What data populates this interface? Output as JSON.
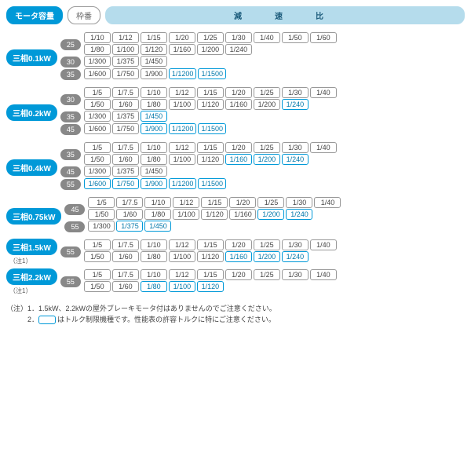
{
  "header": {
    "motor_label": "モータ容量",
    "frame_label": "枠番",
    "ratio_label": "減　速　比"
  },
  "groups": [
    {
      "motor": "三相0.1kW",
      "note": "",
      "branches": [
        {
          "frame": "25",
          "rows": [
            [
              {
                "v": "1/10"
              },
              {
                "v": "1/12"
              },
              {
                "v": "1/15"
              },
              {
                "v": "1/20"
              },
              {
                "v": "1/25"
              },
              {
                "v": "1/30"
              },
              {
                "v": "1/40"
              },
              {
                "v": "1/50"
              },
              {
                "v": "1/60"
              }
            ],
            [
              {
                "v": "1/80"
              },
              {
                "v": "1/100"
              },
              {
                "v": "1/120"
              },
              {
                "v": "1/160"
              },
              {
                "v": "1/200"
              },
              {
                "v": "1/240"
              }
            ]
          ]
        },
        {
          "frame": "30",
          "rows": [
            [
              {
                "v": "1/300"
              },
              {
                "v": "1/375"
              },
              {
                "v": "1/450"
              }
            ]
          ]
        },
        {
          "frame": "35",
          "rows": [
            [
              {
                "v": "1/600"
              },
              {
                "v": "1/750"
              },
              {
                "v": "1/900"
              },
              {
                "v": "1/1200",
                "hl": true
              },
              {
                "v": "1/1500",
                "hl": true
              }
            ]
          ]
        }
      ]
    },
    {
      "motor": "三相0.2kW",
      "note": "",
      "branches": [
        {
          "frame": "30",
          "rows": [
            [
              {
                "v": "1/5"
              },
              {
                "v": "1/7.5"
              },
              {
                "v": "1/10"
              },
              {
                "v": "1/12"
              },
              {
                "v": "1/15"
              },
              {
                "v": "1/20"
              },
              {
                "v": "1/25"
              },
              {
                "v": "1/30"
              },
              {
                "v": "1/40"
              }
            ],
            [
              {
                "v": "1/50"
              },
              {
                "v": "1/60"
              },
              {
                "v": "1/80"
              },
              {
                "v": "1/100"
              },
              {
                "v": "1/120"
              },
              {
                "v": "1/160"
              },
              {
                "v": "1/200"
              },
              {
                "v": "1/240",
                "hl": true
              }
            ]
          ]
        },
        {
          "frame": "35",
          "rows": [
            [
              {
                "v": "1/300"
              },
              {
                "v": "1/375"
              },
              {
                "v": "1/450",
                "hl": true
              }
            ]
          ]
        },
        {
          "frame": "45",
          "rows": [
            [
              {
                "v": "1/600"
              },
              {
                "v": "1/750"
              },
              {
                "v": "1/900",
                "hl": true
              },
              {
                "v": "1/1200",
                "hl": true
              },
              {
                "v": "1/1500",
                "hl": true
              }
            ]
          ]
        }
      ]
    },
    {
      "motor": "三相0.4kW",
      "note": "",
      "branches": [
        {
          "frame": "35",
          "rows": [
            [
              {
                "v": "1/5"
              },
              {
                "v": "1/7.5"
              },
              {
                "v": "1/10"
              },
              {
                "v": "1/12"
              },
              {
                "v": "1/15"
              },
              {
                "v": "1/20"
              },
              {
                "v": "1/25"
              },
              {
                "v": "1/30"
              },
              {
                "v": "1/40"
              }
            ],
            [
              {
                "v": "1/50"
              },
              {
                "v": "1/60"
              },
              {
                "v": "1/80"
              },
              {
                "v": "1/100"
              },
              {
                "v": "1/120"
              },
              {
                "v": "1/160",
                "hl": true
              },
              {
                "v": "1/200",
                "hl": true
              },
              {
                "v": "1/240",
                "hl": true
              }
            ]
          ]
        },
        {
          "frame": "45",
          "rows": [
            [
              {
                "v": "1/300"
              },
              {
                "v": "1/375"
              },
              {
                "v": "1/450"
              }
            ]
          ]
        },
        {
          "frame": "55",
          "rows": [
            [
              {
                "v": "1/600",
                "hl": true
              },
              {
                "v": "1/750",
                "hl": true
              },
              {
                "v": "1/900",
                "hl": true
              },
              {
                "v": "1/1200",
                "hl": true
              },
              {
                "v": "1/1500",
                "hl": true
              }
            ]
          ]
        }
      ]
    },
    {
      "motor": "三相0.75kW",
      "note": "",
      "branches": [
        {
          "frame": "45",
          "rows": [
            [
              {
                "v": "1/5"
              },
              {
                "v": "1/7.5"
              },
              {
                "v": "1/10"
              },
              {
                "v": "1/12"
              },
              {
                "v": "1/15"
              },
              {
                "v": "1/20"
              },
              {
                "v": "1/25"
              },
              {
                "v": "1/30"
              },
              {
                "v": "1/40"
              }
            ],
            [
              {
                "v": "1/50"
              },
              {
                "v": "1/60"
              },
              {
                "v": "1/80"
              },
              {
                "v": "1/100"
              },
              {
                "v": "1/120"
              },
              {
                "v": "1/160"
              },
              {
                "v": "1/200",
                "hl": true
              },
              {
                "v": "1/240",
                "hl": true
              }
            ]
          ]
        },
        {
          "frame": "55",
          "rows": [
            [
              {
                "v": "1/300"
              },
              {
                "v": "1/375",
                "hl": true
              },
              {
                "v": "1/450",
                "hl": true
              }
            ]
          ]
        }
      ]
    },
    {
      "motor": "三相1.5kW",
      "note": "（注1）",
      "branches": [
        {
          "frame": "55",
          "rows": [
            [
              {
                "v": "1/5"
              },
              {
                "v": "1/7.5"
              },
              {
                "v": "1/10"
              },
              {
                "v": "1/12"
              },
              {
                "v": "1/15"
              },
              {
                "v": "1/20"
              },
              {
                "v": "1/25"
              },
              {
                "v": "1/30"
              },
              {
                "v": "1/40"
              }
            ],
            [
              {
                "v": "1/50"
              },
              {
                "v": "1/60"
              },
              {
                "v": "1/80"
              },
              {
                "v": "1/100"
              },
              {
                "v": "1/120"
              },
              {
                "v": "1/160",
                "hl": true
              },
              {
                "v": "1/200",
                "hl": true
              },
              {
                "v": "1/240",
                "hl": true
              }
            ]
          ]
        }
      ]
    },
    {
      "motor": "三相2.2kW",
      "note": "（注1）",
      "branches": [
        {
          "frame": "55",
          "rows": [
            [
              {
                "v": "1/5"
              },
              {
                "v": "1/7.5"
              },
              {
                "v": "1/10"
              },
              {
                "v": "1/12"
              },
              {
                "v": "1/15"
              },
              {
                "v": "1/20"
              },
              {
                "v": "1/25"
              },
              {
                "v": "1/30"
              },
              {
                "v": "1/40"
              }
            ],
            [
              {
                "v": "1/50"
              },
              {
                "v": "1/60"
              },
              {
                "v": "1/80",
                "hl": true
              },
              {
                "v": "1/100",
                "hl": true
              },
              {
                "v": "1/120",
                "hl": true
              }
            ]
          ]
        }
      ]
    }
  ],
  "footnotes": {
    "line1": "（注）1．1.5kW、2.2kWの屋外ブレーキモータ付はありませんのでご注意ください。",
    "line2_prefix": "　　　2．",
    "line2_suffix": "はトルク制限機種です。性能表の許容トルクに特にご注意ください。"
  }
}
